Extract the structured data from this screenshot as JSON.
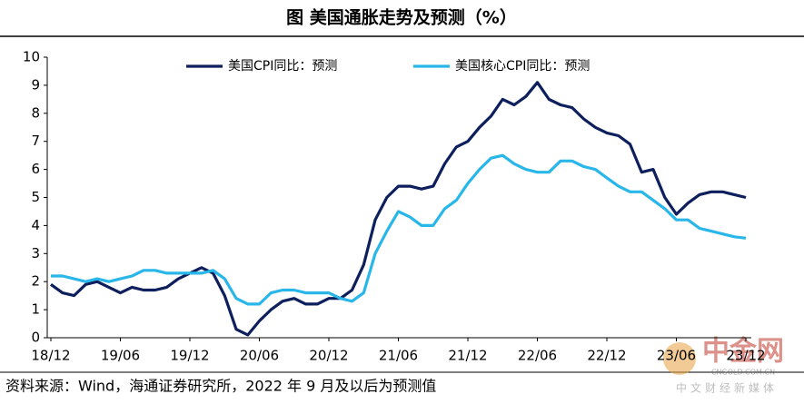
{
  "chart_data": {
    "type": "line",
    "title": "图  美国通胀走势及预测（%）",
    "source": "资料来源：Wind，海通证券研究所，2022 年 9 月及以后为预测值",
    "categories": [
      "18/12",
      null,
      null,
      null,
      null,
      null,
      "19/06",
      null,
      null,
      null,
      null,
      null,
      "19/12",
      null,
      null,
      null,
      null,
      null,
      "20/06",
      null,
      null,
      null,
      null,
      null,
      "20/12",
      null,
      null,
      null,
      null,
      null,
      "21/06",
      null,
      null,
      null,
      null,
      null,
      "21/12",
      null,
      null,
      null,
      null,
      null,
      "22/06",
      null,
      null,
      null,
      null,
      null,
      "22/12",
      null,
      null,
      null,
      null,
      null,
      "23/06",
      null,
      null,
      null,
      null,
      null,
      "23/12"
    ],
    "series": [
      {
        "name": "美国CPI同比：预测",
        "color": "#0d1f5c",
        "values": [
          1.9,
          1.6,
          1.5,
          1.9,
          2.0,
          1.8,
          1.6,
          1.8,
          1.7,
          1.7,
          1.8,
          2.1,
          2.3,
          2.5,
          2.3,
          1.5,
          0.3,
          0.1,
          0.6,
          1.0,
          1.3,
          1.4,
          1.2,
          1.2,
          1.4,
          1.4,
          1.7,
          2.6,
          4.2,
          5.0,
          5.4,
          5.4,
          5.3,
          5.4,
          6.2,
          6.8,
          7.0,
          7.5,
          7.9,
          8.5,
          8.3,
          8.6,
          9.1,
          8.5,
          8.3,
          8.2,
          7.8,
          7.5,
          7.3,
          7.2,
          6.9,
          5.9,
          6.0,
          5.0,
          4.4,
          4.8,
          5.1,
          5.2,
          5.2,
          5.1,
          5.0
        ]
      },
      {
        "name": "美国核心CPI同比：预测",
        "color": "#29b6e8",
        "values": [
          2.2,
          2.2,
          2.1,
          2.0,
          2.1,
          2.0,
          2.1,
          2.2,
          2.4,
          2.4,
          2.3,
          2.3,
          2.3,
          2.3,
          2.4,
          2.1,
          1.4,
          1.2,
          1.2,
          1.6,
          1.7,
          1.7,
          1.6,
          1.6,
          1.6,
          1.4,
          1.3,
          1.6,
          3.0,
          3.8,
          4.5,
          4.3,
          4.0,
          4.0,
          4.6,
          4.9,
          5.5,
          6.0,
          6.4,
          6.5,
          6.2,
          6.0,
          5.9,
          5.9,
          6.3,
          6.3,
          6.1,
          6.0,
          5.7,
          5.4,
          5.2,
          5.2,
          4.9,
          4.6,
          4.2,
          4.2,
          3.9,
          3.8,
          3.7,
          3.6,
          3.55
        ]
      }
    ],
    "ylim": [
      0,
      10
    ],
    "yticks": [
      0,
      1,
      2,
      3,
      4,
      5,
      6,
      7,
      8,
      9,
      10
    ],
    "grid": false,
    "legend": "top"
  },
  "watermark": {
    "brand": "中金网",
    "site": "CNGOLD.COM.CN",
    "slogan": "中文财经新媒体"
  }
}
